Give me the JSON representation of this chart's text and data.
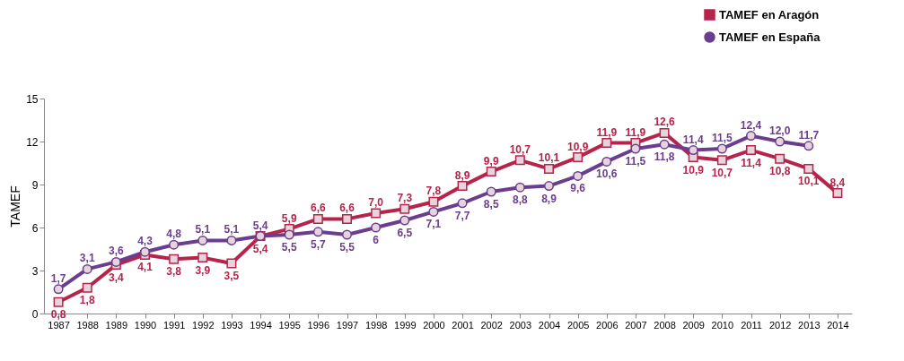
{
  "chart_data": {
    "type": "line",
    "ylabel": "TAMEF",
    "categories": [
      "1987",
      "1988",
      "1989",
      "1990",
      "1991",
      "1992",
      "1993",
      "1994",
      "1995",
      "1996",
      "1997",
      "1998",
      "1999",
      "2000",
      "2001",
      "2002",
      "2003",
      "2004",
      "2005",
      "2006",
      "2007",
      "2008",
      "2009",
      "2010",
      "2011",
      "2012",
      "2013",
      "2014"
    ],
    "series": [
      {
        "name": "TAMEF en Aragón",
        "color": "#b5254b",
        "marker": "square",
        "values": [
          0.8,
          1.8,
          3.4,
          4.1,
          3.8,
          3.9,
          3.5,
          5.4,
          5.9,
          6.6,
          6.6,
          7.0,
          7.3,
          7.8,
          8.9,
          9.9,
          10.7,
          10.1,
          10.9,
          11.9,
          11.9,
          12.6,
          10.9,
          10.7,
          11.4,
          10.8,
          10.1,
          8.4
        ],
        "value_labels": [
          "0,8",
          "1,8",
          "3,4",
          "4,1",
          "3,8",
          "3,9",
          "3,5",
          "5,4",
          "5,9",
          "6,6",
          "6,6",
          "7,0",
          "7,3",
          "7,8",
          "8,9",
          "9,9",
          "10,7",
          "10,1",
          "10,9",
          "11,9",
          "11,9",
          "12,6",
          "10,9",
          "10,7",
          "11,4",
          "10,8",
          "10,1",
          "8,4"
        ]
      },
      {
        "name": "TAMEF en España",
        "color": "#6a3d8f",
        "marker": "circle",
        "values": [
          1.7,
          3.1,
          3.6,
          4.3,
          4.8,
          5.1,
          5.1,
          5.4,
          5.5,
          5.7,
          5.5,
          6,
          6.5,
          7.1,
          7.7,
          8.5,
          8.8,
          8.9,
          9.6,
          10.6,
          11.5,
          11.8,
          11.4,
          11.5,
          12.4,
          12.0,
          11.7,
          null
        ],
        "value_labels": [
          "1,7",
          "3,1",
          "3,6",
          "4,3",
          "4,8",
          "5,1",
          "5,1",
          "5,4",
          "5,5",
          "5,7",
          "5,5",
          "6",
          "6,5",
          "7,1",
          "7,7",
          "8,5",
          "8,8",
          "8,9",
          "9,6",
          "10,6",
          "11,5",
          "11,8",
          "11,4",
          "11,5",
          "12,4",
          "12,0",
          "11,7",
          null
        ]
      }
    ],
    "ylim": [
      0,
      15
    ],
    "yticks": [
      0,
      3,
      6,
      9,
      12,
      15
    ],
    "grid": false,
    "legend": "top right",
    "line_style": "solid"
  }
}
